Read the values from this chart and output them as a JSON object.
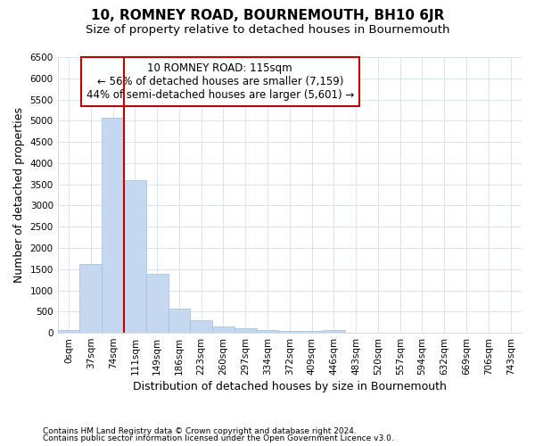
{
  "title": "10, ROMNEY ROAD, BOURNEMOUTH, BH10 6JR",
  "subtitle": "Size of property relative to detached houses in Bournemouth",
  "xlabel": "Distribution of detached houses by size in Bournemouth",
  "ylabel": "Number of detached properties",
  "footer_line1": "Contains HM Land Registry data © Crown copyright and database right 2024.",
  "footer_line2": "Contains public sector information licensed under the Open Government Licence v3.0.",
  "bar_labels": [
    "0sqm",
    "37sqm",
    "74sqm",
    "111sqm",
    "149sqm",
    "186sqm",
    "223sqm",
    "260sqm",
    "297sqm",
    "334sqm",
    "372sqm",
    "409sqm",
    "446sqm",
    "483sqm",
    "520sqm",
    "557sqm",
    "594sqm",
    "632sqm",
    "669sqm",
    "706sqm",
    "743sqm"
  ],
  "bar_values": [
    75,
    1625,
    5075,
    3600,
    1400,
    575,
    290,
    145,
    110,
    75,
    40,
    40,
    75,
    0,
    0,
    0,
    0,
    0,
    0,
    0,
    0
  ],
  "bar_color": "#c5d8f0",
  "bar_edge_color": "#9abfdf",
  "highlight_color": "#c00000",
  "property_label": "10 ROMNEY ROAD: 115sqm",
  "annotation_line1": "← 56% of detached houses are smaller (7,159)",
  "annotation_line2": "44% of semi-detached houses are larger (5,601) →",
  "ylim": [
    0,
    6500
  ],
  "yticks": [
    0,
    500,
    1000,
    1500,
    2000,
    2500,
    3000,
    3500,
    4000,
    4500,
    5000,
    5500,
    6000,
    6500
  ],
  "bg_color": "#ffffff",
  "axes_bg_color": "#ffffff",
  "grid_color": "#d8e4f0",
  "title_fontsize": 11,
  "subtitle_fontsize": 9.5,
  "axis_label_fontsize": 9,
  "tick_fontsize": 7.5,
  "annotation_box_color": "#c00000",
  "figsize": [
    6.0,
    5.0
  ],
  "dpi": 100
}
